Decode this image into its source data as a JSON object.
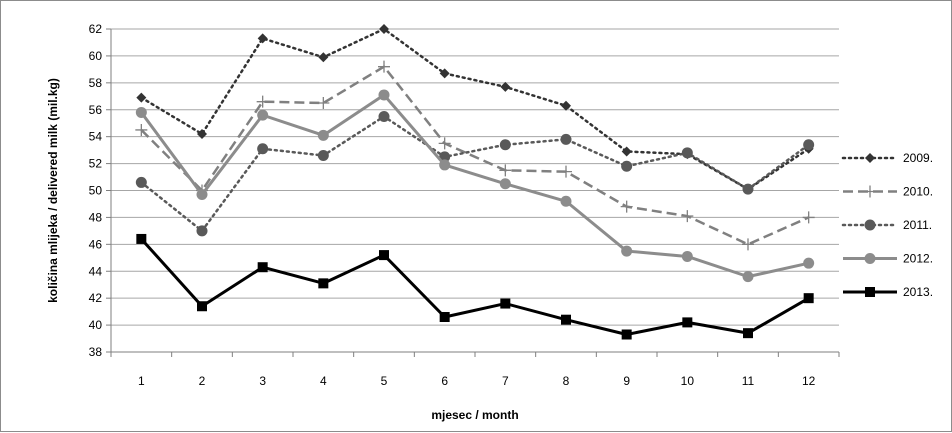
{
  "chart_data": {
    "type": "line",
    "xlabel": "mjesec / month",
    "ylabel": "količina mlijeka / delivered milk (mil.kg)",
    "x": [
      1,
      2,
      3,
      4,
      5,
      6,
      7,
      8,
      9,
      10,
      11,
      12
    ],
    "x_tick_labels": [
      "1",
      "2",
      "3",
      "4",
      "5",
      "6",
      "7",
      "8",
      "9",
      "10",
      "11",
      "12"
    ],
    "ylim": [
      38,
      62
    ],
    "y_ticks": [
      38,
      40,
      42,
      44,
      46,
      48,
      50,
      52,
      54,
      56,
      58,
      60,
      62
    ],
    "y_tick_labels": [
      "38",
      "40",
      "42",
      "44",
      "46",
      "48",
      "50",
      "52",
      "54",
      "56",
      "58",
      "60",
      "62"
    ],
    "grid": "horizontal",
    "legend_position": "right",
    "series": [
      {
        "name": "2009.",
        "values": [
          56.9,
          54.2,
          61.3,
          59.9,
          62.0,
          58.7,
          57.7,
          56.3,
          52.9,
          52.7,
          50.1,
          53.1
        ],
        "color": "#333333",
        "line_style": "dotted",
        "marker": "diamond"
      },
      {
        "name": "2010.",
        "values": [
          54.5,
          50.0,
          56.6,
          56.5,
          59.2,
          53.5,
          51.5,
          51.4,
          48.8,
          48.1,
          46.0,
          48.0
        ],
        "color": "#808080",
        "line_style": "dashed",
        "marker": "plus"
      },
      {
        "name": "2011.",
        "values": [
          50.6,
          47.0,
          53.1,
          52.6,
          55.5,
          52.5,
          53.4,
          53.8,
          51.8,
          52.8,
          50.1,
          53.4
        ],
        "color": "#595959",
        "line_style": "dotted",
        "marker": "circle"
      },
      {
        "name": "2012.",
        "values": [
          55.8,
          49.7,
          55.6,
          54.1,
          57.1,
          51.9,
          50.5,
          49.2,
          45.5,
          45.1,
          43.6,
          44.6
        ],
        "color": "#8c8c8c",
        "line_style": "solid",
        "marker": "circle"
      },
      {
        "name": "2013.",
        "values": [
          46.4,
          41.4,
          44.3,
          43.1,
          45.2,
          40.6,
          41.6,
          40.4,
          39.3,
          40.2,
          39.4,
          42.0
        ],
        "color": "#000000",
        "line_style": "solid",
        "marker": "square"
      }
    ]
  }
}
